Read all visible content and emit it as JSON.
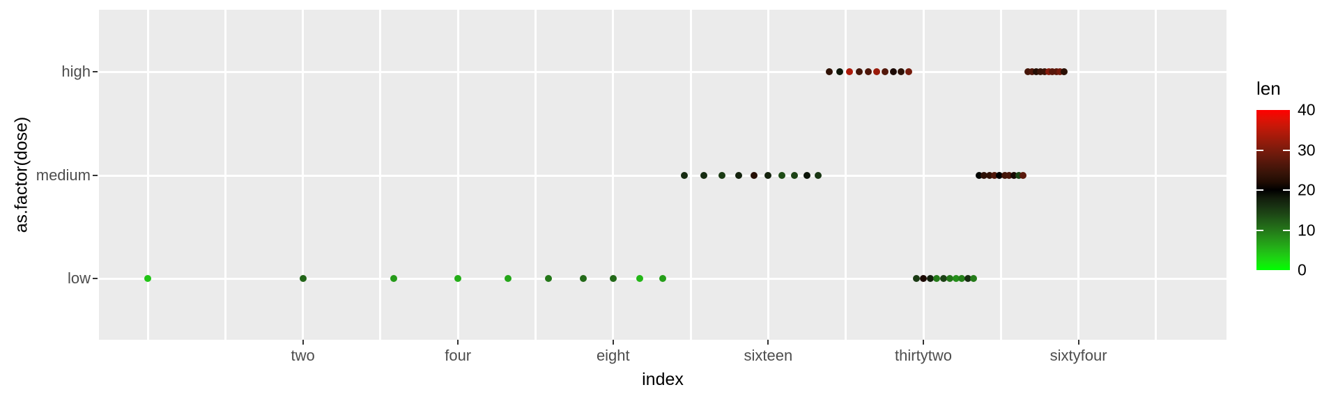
{
  "chart_data": {
    "type": "scatter",
    "title": "",
    "xlabel": "index",
    "ylabel": "as.factor(dose)",
    "x_scale": "log2",
    "x_ticks": [
      {
        "value": 2,
        "label": "two"
      },
      {
        "value": 4,
        "label": "four"
      },
      {
        "value": 8,
        "label": "eight"
      },
      {
        "value": 16,
        "label": "sixteen"
      },
      {
        "value": 32,
        "label": "thirtytwo"
      },
      {
        "value": 64,
        "label": "sixtyfour"
      }
    ],
    "x_major_gridline_values": [
      1,
      2,
      4,
      8,
      16,
      32,
      64
    ],
    "x_minor_gridline_values": [
      1.414,
      2.828,
      5.657,
      11.314,
      22.627,
      45.255,
      90.51
    ],
    "y_categories": [
      "low",
      "medium",
      "high"
    ],
    "grid_on": true,
    "legend": {
      "title": "len",
      "position": "right",
      "limits": [
        0,
        40
      ],
      "midpoint": 20,
      "tick_values": [
        40,
        30,
        20,
        10,
        0
      ],
      "low_color": "#00FF00",
      "mid_color": "#000000",
      "high_color": "#FF0000"
    },
    "colors": {
      "panel_bg": "#EBEBEB",
      "grid": "#FFFFFF",
      "axis_tick": "#333333",
      "tick_label": "#4D4D4D",
      "axis_title": "#000000"
    },
    "points": [
      {
        "i": 1,
        "dose": "low",
        "len": 4.2
      },
      {
        "i": 2,
        "dose": "low",
        "len": 11.5
      },
      {
        "i": 3,
        "dose": "low",
        "len": 7.3
      },
      {
        "i": 4,
        "dose": "low",
        "len": 5.8
      },
      {
        "i": 5,
        "dose": "low",
        "len": 6.4
      },
      {
        "i": 6,
        "dose": "low",
        "len": 10.0
      },
      {
        "i": 7,
        "dose": "low",
        "len": 11.2
      },
      {
        "i": 8,
        "dose": "low",
        "len": 11.2
      },
      {
        "i": 9,
        "dose": "low",
        "len": 5.2
      },
      {
        "i": 10,
        "dose": "low",
        "len": 7.0
      },
      {
        "i": 11,
        "dose": "medium",
        "len": 16.5
      },
      {
        "i": 12,
        "dose": "medium",
        "len": 16.5
      },
      {
        "i": 13,
        "dose": "medium",
        "len": 15.2
      },
      {
        "i": 14,
        "dose": "medium",
        "len": 17.3
      },
      {
        "i": 15,
        "dose": "medium",
        "len": 22.5
      },
      {
        "i": 16,
        "dose": "medium",
        "len": 17.3
      },
      {
        "i": 17,
        "dose": "medium",
        "len": 13.6
      },
      {
        "i": 18,
        "dose": "medium",
        "len": 14.5
      },
      {
        "i": 19,
        "dose": "medium",
        "len": 18.8
      },
      {
        "i": 20,
        "dose": "medium",
        "len": 15.5
      },
      {
        "i": 21,
        "dose": "high",
        "len": 23.6
      },
      {
        "i": 22,
        "dose": "high",
        "len": 18.5
      },
      {
        "i": 23,
        "dose": "high",
        "len": 33.9
      },
      {
        "i": 24,
        "dose": "high",
        "len": 25.5
      },
      {
        "i": 25,
        "dose": "high",
        "len": 26.4
      },
      {
        "i": 26,
        "dose": "high",
        "len": 32.5
      },
      {
        "i": 27,
        "dose": "high",
        "len": 26.7
      },
      {
        "i": 28,
        "dose": "high",
        "len": 21.5
      },
      {
        "i": 29,
        "dose": "high",
        "len": 23.3
      },
      {
        "i": 30,
        "dose": "high",
        "len": 29.5
      },
      {
        "i": 31,
        "dose": "low",
        "len": 15.2
      },
      {
        "i": 32,
        "dose": "low",
        "len": 21.5
      },
      {
        "i": 33,
        "dose": "low",
        "len": 17.6
      },
      {
        "i": 34,
        "dose": "low",
        "len": 9.7
      },
      {
        "i": 35,
        "dose": "low",
        "len": 14.5
      },
      {
        "i": 36,
        "dose": "low",
        "len": 10.0
      },
      {
        "i": 37,
        "dose": "low",
        "len": 8.2
      },
      {
        "i": 38,
        "dose": "low",
        "len": 9.4
      },
      {
        "i": 39,
        "dose": "low",
        "len": 16.5
      },
      {
        "i": 40,
        "dose": "low",
        "len": 9.7
      },
      {
        "i": 41,
        "dose": "medium",
        "len": 19.7
      },
      {
        "i": 42,
        "dose": "medium",
        "len": 23.3
      },
      {
        "i": 43,
        "dose": "medium",
        "len": 23.6
      },
      {
        "i": 44,
        "dose": "medium",
        "len": 26.4
      },
      {
        "i": 45,
        "dose": "medium",
        "len": 20.0
      },
      {
        "i": 46,
        "dose": "medium",
        "len": 25.2
      },
      {
        "i": 47,
        "dose": "medium",
        "len": 25.8
      },
      {
        "i": 48,
        "dose": "medium",
        "len": 21.2
      },
      {
        "i": 49,
        "dose": "medium",
        "len": 14.5
      },
      {
        "i": 50,
        "dose": "medium",
        "len": 27.3
      },
      {
        "i": 51,
        "dose": "high",
        "len": 25.5
      },
      {
        "i": 52,
        "dose": "high",
        "len": 26.4
      },
      {
        "i": 53,
        "dose": "high",
        "len": 22.4
      },
      {
        "i": 54,
        "dose": "high",
        "len": 24.5
      },
      {
        "i": 55,
        "dose": "high",
        "len": 24.8
      },
      {
        "i": 56,
        "dose": "high",
        "len": 30.9
      },
      {
        "i": 57,
        "dose": "high",
        "len": 27.3
      },
      {
        "i": 58,
        "dose": "high",
        "len": 27.3
      },
      {
        "i": 59,
        "dose": "high",
        "len": 29.4
      },
      {
        "i": 60,
        "dose": "high",
        "len": 23.0
      }
    ]
  }
}
